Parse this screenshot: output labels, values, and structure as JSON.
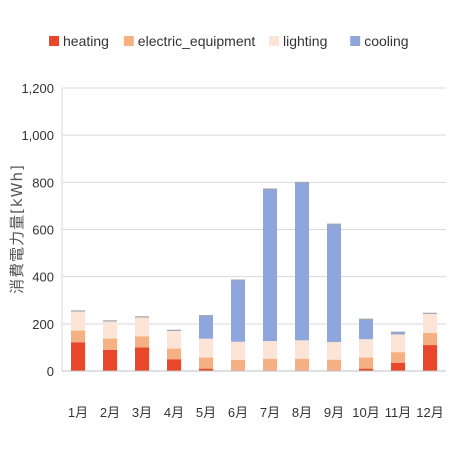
{
  "chart_data": {
    "type": "bar",
    "stacked": true,
    "categories": [
      "1月",
      "2月",
      "3月",
      "4月",
      "5月",
      "6月",
      "7月",
      "8月",
      "9月",
      "10月",
      "11月",
      "12月"
    ],
    "series": [
      {
        "name": "heating",
        "color": "#e8472c",
        "values": [
          122,
          90,
          100,
          50,
          10,
          0,
          0,
          0,
          0,
          10,
          35,
          110
        ]
      },
      {
        "name": "electric_equipment",
        "color": "#f5b183",
        "values": [
          50,
          48,
          47,
          45,
          47,
          47,
          52,
          52,
          48,
          47,
          45,
          52
        ]
      },
      {
        "name": "lighting",
        "color": "#fce4d6",
        "values": [
          80,
          72,
          80,
          75,
          80,
          77,
          75,
          78,
          75,
          78,
          75,
          80
        ]
      },
      {
        "name": "cooling",
        "color": "#8fa6dc",
        "values": [
          3,
          3,
          3,
          3,
          98,
          262,
          645,
          670,
          500,
          85,
          10,
          3
        ]
      }
    ],
    "ylabel": "消費電力量[kWh]",
    "xlabel": "",
    "title": "",
    "ylim": [
      0,
      1200
    ],
    "yticks": [
      "0",
      "200",
      "400",
      "600",
      "800",
      "1,000",
      "1,200"
    ],
    "ytick_values": [
      0,
      200,
      400,
      600,
      800,
      1000,
      1200
    ],
    "grid": true,
    "legend_position": "top"
  }
}
